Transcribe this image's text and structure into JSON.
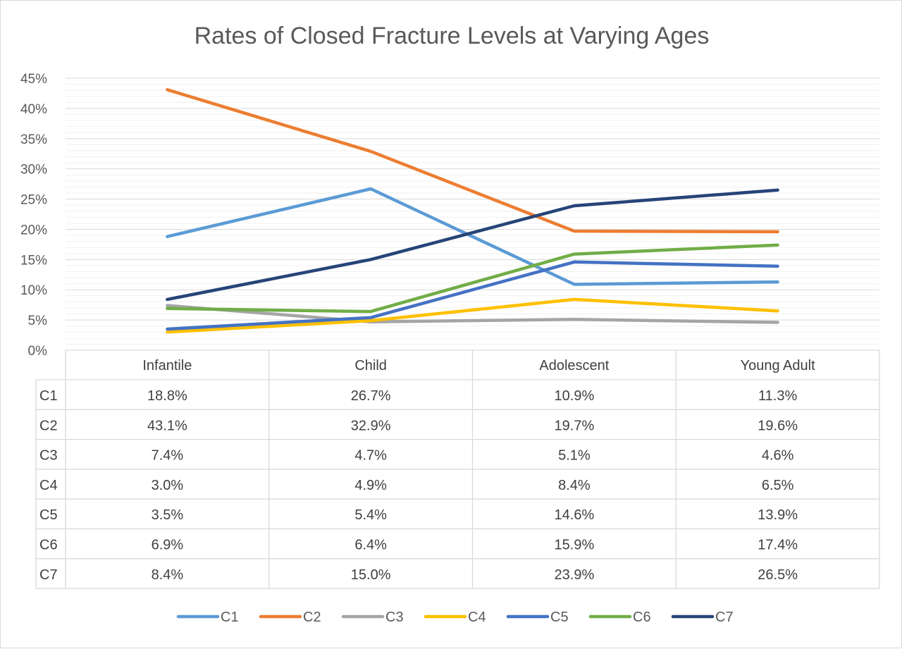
{
  "chart_data": {
    "type": "line",
    "title": "Rates of Closed Fracture Levels at Varying Ages",
    "categories": [
      "Infantile",
      "Child",
      "Adolescent",
      "Young Adult"
    ],
    "ylim": [
      0,
      45
    ],
    "yticks": [
      "0%",
      "5%",
      "10%",
      "15%",
      "20%",
      "25%",
      "30%",
      "35%",
      "40%",
      "45%"
    ],
    "grid": true,
    "legend_position": "bottom",
    "data_table": true,
    "series": [
      {
        "name": "C1",
        "color": "#5B9BD5",
        "values": [
          18.8,
          26.7,
          10.9,
          11.3
        ],
        "labels": [
          "18.8%",
          "26.7%",
          "10.9%",
          "11.3%"
        ]
      },
      {
        "name": "C2",
        "color": "#ED7D31",
        "values": [
          43.1,
          32.9,
          19.7,
          19.6
        ],
        "labels": [
          "43.1%",
          "32.9%",
          "19.7%",
          "19.6%"
        ]
      },
      {
        "name": "C3",
        "color": "#A5A5A5",
        "values": [
          7.4,
          4.7,
          5.1,
          4.6
        ],
        "labels": [
          "7.4%",
          "4.7%",
          "5.1%",
          "4.6%"
        ]
      },
      {
        "name": "C4",
        "color": "#FFC000",
        "values": [
          3.0,
          4.9,
          8.4,
          6.5
        ],
        "labels": [
          "3.0%",
          "4.9%",
          "8.4%",
          "6.5%"
        ]
      },
      {
        "name": "C5",
        "color": "#4472C4",
        "values": [
          3.5,
          5.4,
          14.6,
          13.9
        ],
        "labels": [
          "3.5%",
          "5.4%",
          "14.6%",
          "13.9%"
        ]
      },
      {
        "name": "C6",
        "color": "#70AD47",
        "values": [
          6.9,
          6.4,
          15.9,
          17.4
        ],
        "labels": [
          "6.9%",
          "6.4%",
          "15.9%",
          "17.4%"
        ]
      },
      {
        "name": "C7",
        "color": "#264478",
        "values": [
          8.4,
          15.0,
          23.9,
          26.5
        ],
        "labels": [
          "8.4%",
          "15.0%",
          "23.9%",
          "26.5%"
        ]
      }
    ]
  }
}
